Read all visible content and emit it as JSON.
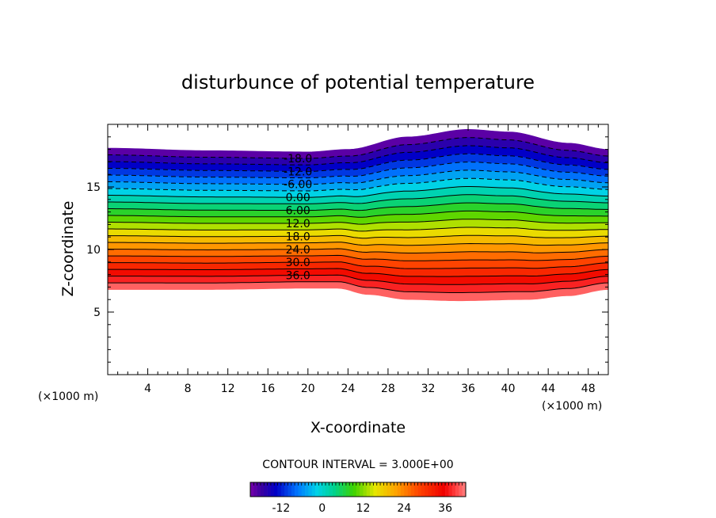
{
  "chart_data": {
    "type": "contour",
    "title": "disturbunce of potential temperature",
    "xlabel": "X-coordinate",
    "ylabel": "Z-coordinate",
    "x_unit": "(×1000 m)",
    "y_unit": "(×1000 m)",
    "xlim": [
      0,
      50
    ],
    "ylim": [
      0,
      20
    ],
    "x_ticks": [
      4,
      8,
      12,
      16,
      20,
      24,
      28,
      32,
      36,
      40,
      44,
      48
    ],
    "y_ticks": [
      5,
      10,
      15
    ],
    "contour_interval_text": "CONTOUR INTERVAL = 3.000E+00",
    "contour_labels": [
      "-18.0",
      "-12.0",
      "-6.00",
      "0.00",
      "6.00",
      "12.0",
      "18.0",
      "24.0",
      "30.0",
      "36.0"
    ],
    "level_min": -21,
    "level_max": 42,
    "top_boundary": [
      [
        0,
        18.1
      ],
      [
        10,
        17.9
      ],
      [
        20,
        17.8
      ],
      [
        24,
        18.0
      ],
      [
        30,
        19.0
      ],
      [
        36,
        19.6
      ],
      [
        40,
        19.4
      ],
      [
        46,
        18.5
      ],
      [
        50,
        18.0
      ]
    ],
    "bottom_boundary": [
      [
        0,
        6.8
      ],
      [
        10,
        6.8
      ],
      [
        20,
        6.9
      ],
      [
        23,
        6.9
      ],
      [
        26,
        6.4
      ],
      [
        30,
        6.0
      ],
      [
        35,
        5.9
      ],
      [
        42,
        6.0
      ],
      [
        46,
        6.3
      ],
      [
        50,
        6.8
      ]
    ],
    "colorbar_ticks": [
      "-12",
      "0",
      "12",
      "24",
      "36"
    ],
    "colorbar_values": [
      -12,
      0,
      12,
      24,
      36
    ],
    "colorbar_range": [
      -21,
      42
    ]
  }
}
